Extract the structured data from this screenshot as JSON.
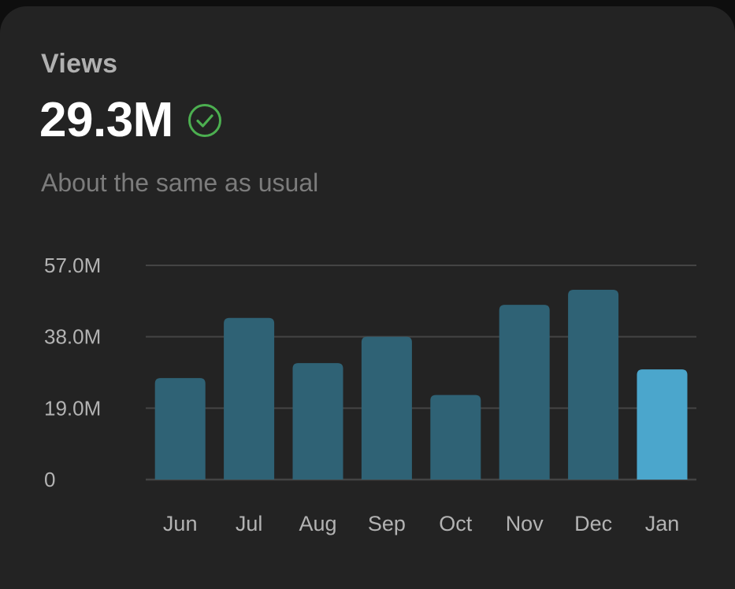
{
  "card": {
    "label": "Views",
    "value": "29.3M",
    "status_icon": "check-circle-icon",
    "subtitle": "About the same as usual"
  },
  "colors": {
    "bar": "#2f6275",
    "bar_highlight": "#4ba6cc",
    "check": "#4caf50",
    "grid": "#444444"
  },
  "chart_data": {
    "type": "bar",
    "title": "Views",
    "xlabel": "",
    "ylabel": "",
    "categories": [
      "Jun",
      "Jul",
      "Aug",
      "Sep",
      "Oct",
      "Nov",
      "Dec",
      "Jan"
    ],
    "values": [
      27.0,
      43.0,
      31.0,
      38.0,
      22.5,
      46.5,
      50.5,
      29.3
    ],
    "highlight_index": 7,
    "ylim": [
      0,
      57.0
    ],
    "yticks": [
      0,
      19.0,
      38.0,
      57.0
    ],
    "ytick_labels": [
      "0",
      "19.0M",
      "38.0M",
      "57.0M"
    ],
    "grid": true
  }
}
